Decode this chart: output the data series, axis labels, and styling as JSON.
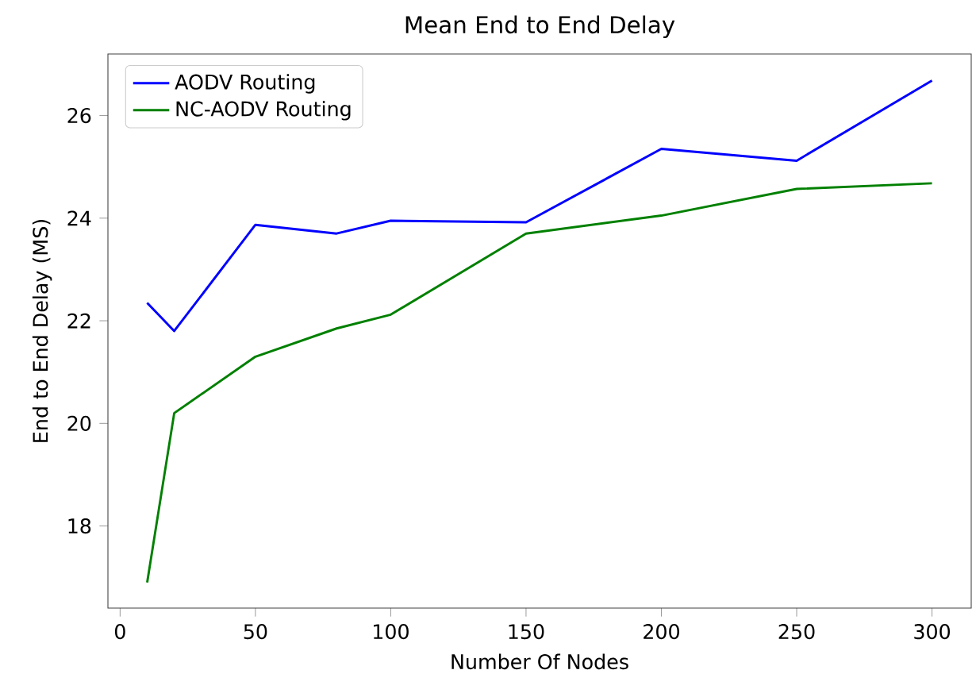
{
  "chart_data": {
    "type": "line",
    "title": "Mean End to End Delay",
    "xlabel": "Number Of Nodes",
    "ylabel": "End to End Delay (MS)",
    "x": [
      10,
      20,
      50,
      80,
      100,
      150,
      200,
      250,
      300
    ],
    "series": [
      {
        "name": "AODV Routing",
        "color": "#0000ff",
        "values": [
          22.35,
          21.8,
          23.87,
          23.7,
          23.95,
          23.92,
          25.35,
          25.12,
          26.68
        ]
      },
      {
        "name": "NC-AODV Routing",
        "color": "#008000",
        "values": [
          16.9,
          20.2,
          21.3,
          21.85,
          22.12,
          23.7,
          24.05,
          24.57,
          24.68
        ]
      }
    ],
    "xlim": [
      -4.5,
      314.5
    ],
    "ylim": [
      16.4,
      27.2
    ],
    "xticks": [
      0,
      50,
      100,
      150,
      200,
      250,
      300
    ],
    "yticks": [
      18,
      20,
      22,
      24,
      26
    ],
    "grid": false,
    "legend": "top left",
    "marker": "none",
    "line_style": "solid"
  }
}
